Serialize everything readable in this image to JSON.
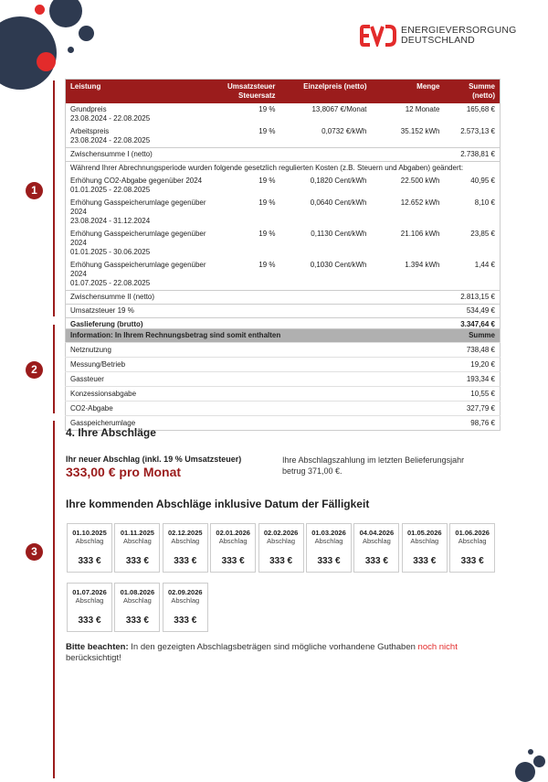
{
  "brand": {
    "line1": "ENERGIEVERSORGUNG",
    "line2": "DEUTSCHLAND",
    "logo_text": "EVD",
    "color": "#e32b2b"
  },
  "accent": "#9b1c1c",
  "markers": [
    "1",
    "2",
    "3"
  ],
  "table1": {
    "headers": [
      "Leistung",
      "Umsatzsteuer Steuersatz",
      "Einzelpreis (netto)",
      "Menge",
      "Summe (netto)"
    ],
    "rows": [
      {
        "label": "Grundpreis",
        "period": "23.08.2024 - 22.08.2025",
        "tax": "19 %",
        "price": "13,8067 €/Monat",
        "qty": "12 Monate",
        "sum": "165,68 €"
      },
      {
        "label": "Arbeitspreis",
        "period": "23.08.2024 - 22.08.2025",
        "tax": "19 %",
        "price": "0,0732 €/kWh",
        "qty": "35.152 kWh",
        "sum": "2.573,13 €"
      }
    ],
    "subtotal1": {
      "label": "Zwischensumme I (netto)",
      "sum": "2.738,81 €"
    },
    "notice": "Während Ihrer Abrechnungsperiode wurden folgende gesetzlich regulierten Kosten (z.B. Steuern und Abgaben) geändert:",
    "changes": [
      {
        "label": "Erhöhung CO2-Abgabe gegenüber 2024",
        "period": "01.01.2025 - 22.08.2025",
        "tax": "19 %",
        "price": "0,1820 Cent/kWh",
        "qty": "22.500 kWh",
        "sum": "40,95 €"
      },
      {
        "label": "Erhöhung Gasspeicherumlage gegenüber 2024",
        "period": "23.08.2024 - 31.12.2024",
        "tax": "19 %",
        "price": "0,0640 Cent/kWh",
        "qty": "12.652 kWh",
        "sum": "8,10 €"
      },
      {
        "label": "Erhöhung Gasspeicherumlage gegenüber 2024",
        "period": "01.01.2025 - 30.06.2025",
        "tax": "19 %",
        "price": "0,1130 Cent/kWh",
        "qty": "21.106 kWh",
        "sum": "23,85 €"
      },
      {
        "label": "Erhöhung Gasspeicherumlage gegenüber 2024",
        "period": "01.07.2025 - 22.08.2025",
        "tax": "19 %",
        "price": "0,1030 Cent/kWh",
        "qty": "1.394 kWh",
        "sum": "1,44 €"
      }
    ],
    "subtotal2": {
      "label": "Zwischensumme II (netto)",
      "sum": "2.813,15 €"
    },
    "vat": {
      "label": "Umsatzsteuer 19 %",
      "sum": "534,49 €"
    },
    "total": {
      "label": "Gaslieferung (brutto)",
      "sum": "3.347,64 €"
    }
  },
  "table2": {
    "headers": [
      "Information: In Ihrem Rechnungsbetrag sind somit enthalten",
      "Summe"
    ],
    "rows": [
      {
        "label": "Netznutzung",
        "sum": "738,48 €"
      },
      {
        "label": "Messung/Betrieb",
        "sum": "19,20 €"
      },
      {
        "label": "Gassteuer",
        "sum": "193,34 €"
      },
      {
        "label": "Konzessionsabgabe",
        "sum": "10,55 €"
      },
      {
        "label": "CO2-Abgabe",
        "sum": "327,79 €"
      },
      {
        "label": "Gasspeicherumlage",
        "sum": "98,76 €"
      }
    ]
  },
  "section": {
    "title": "4. Ihre Abschläge",
    "new_label": "Ihr neuer Abschlag (inkl. 19 % Umsatzsteuer)",
    "new_amount": "333,00 € pro Monat",
    "previous_text": "Ihre Abschlagszahlung im letzten Belieferungsjahr betrug 371,00 €.",
    "upcoming_title": "Ihre kommenden Abschläge inklusive Datum der Fälligkeit",
    "installments": [
      {
        "date": "01.10.2025",
        "label": "Abschlag",
        "amount": "333 €"
      },
      {
        "date": "01.11.2025",
        "label": "Abschlag",
        "amount": "333 €"
      },
      {
        "date": "02.12.2025",
        "label": "Abschlag",
        "amount": "333 €"
      },
      {
        "date": "02.01.2026",
        "label": "Abschlag",
        "amount": "333 €"
      },
      {
        "date": "02.02.2026",
        "label": "Abschlag",
        "amount": "333 €"
      },
      {
        "date": "01.03.2026",
        "label": "Abschlag",
        "amount": "333 €"
      },
      {
        "date": "04.04.2026",
        "label": "Abschlag",
        "amount": "333 €"
      },
      {
        "date": "01.05.2026",
        "label": "Abschlag",
        "amount": "333 €"
      },
      {
        "date": "01.06.2026",
        "label": "Abschlag",
        "amount": "333 €"
      },
      {
        "date": "01.07.2026",
        "label": "Abschlag",
        "amount": "333 €"
      },
      {
        "date": "01.08.2026",
        "label": "Abschlag",
        "amount": "333 €"
      },
      {
        "date": "02.09.2026",
        "label": "Abschlag",
        "amount": "333 €"
      }
    ],
    "note_bold": "Bitte beachten:",
    "note_text": " In den gezeigten Abschlagsbeträgen sind mögliche vorhandene Guthaben ",
    "note_red": "noch nicht",
    "note_end": " berücksichtigt!"
  }
}
